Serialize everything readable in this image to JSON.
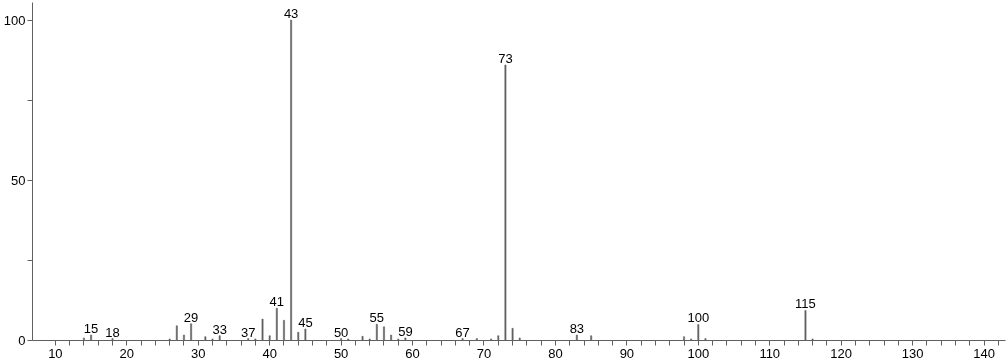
{
  "chart_data": {
    "type": "bar",
    "color": "#606060",
    "x": [
      14,
      15,
      18,
      26,
      27,
      28,
      29,
      31,
      32,
      33,
      37,
      38,
      39,
      40,
      41,
      42,
      43,
      44,
      45,
      50,
      51,
      53,
      54,
      55,
      56,
      57,
      58,
      59,
      67,
      69,
      71,
      72,
      73,
      74,
      75,
      83,
      85,
      98,
      99,
      100,
      101,
      115,
      116
    ],
    "values": [
      0.8,
      1.7,
      0.6,
      0.5,
      4.6,
      1.7,
      5.2,
      1.2,
      0.5,
      1.5,
      0.6,
      0.5,
      6.7,
      1.5,
      10.1,
      6.3,
      100,
      2.6,
      3.6,
      0.6,
      0.5,
      1.3,
      0.5,
      5.1,
      4.3,
      1.7,
      0.5,
      0.8,
      0.6,
      0.6,
      0.5,
      1.5,
      86,
      3.8,
      0.8,
      1.7,
      1.5,
      1.2,
      0.5,
      5.0,
      0.6,
      9.4,
      0.5
    ],
    "xlim": [
      6.8,
      143
    ],
    "ylim": [
      0,
      105.5
    ],
    "xticks": [
      10,
      {
        "value": 12,
        "label": null
      },
      {
        "value": 14,
        "label": null
      },
      {
        "value": 16,
        "label": null
      },
      {
        "value": 18,
        "label": null
      },
      20,
      {
        "value": 22,
        "label": null
      },
      {
        "value": 24,
        "label": null
      },
      {
        "value": 26,
        "label": null
      },
      {
        "value": 28,
        "label": null
      },
      30,
      {
        "value": 32,
        "label": null
      },
      {
        "value": 34,
        "label": null
      },
      {
        "value": 36,
        "label": null
      },
      {
        "value": 38,
        "label": null
      },
      40,
      {
        "value": 42,
        "label": null
      },
      {
        "value": 44,
        "label": null
      },
      {
        "value": 46,
        "label": null
      },
      {
        "value": 48,
        "label": null
      },
      50,
      {
        "value": 52,
        "label": null
      },
      {
        "value": 54,
        "label": null
      },
      {
        "value": 56,
        "label": null
      },
      {
        "value": 58,
        "label": null
      },
      60,
      {
        "value": 62,
        "label": null
      },
      {
        "value": 64,
        "label": null
      },
      {
        "value": 66,
        "label": null
      },
      {
        "value": 68,
        "label": null
      },
      70,
      {
        "value": 72,
        "label": null
      },
      {
        "value": 74,
        "label": null
      },
      {
        "value": 76,
        "label": null
      },
      {
        "value": 78,
        "label": null
      },
      80,
      {
        "value": 82,
        "label": null
      },
      {
        "value": 84,
        "label": null
      },
      {
        "value": 86,
        "label": null
      },
      {
        "value": 88,
        "label": null
      },
      90,
      {
        "value": 92,
        "label": null
      },
      {
        "value": 94,
        "label": null
      },
      {
        "value": 96,
        "label": null
      },
      {
        "value": 98,
        "label": null
      },
      100,
      {
        "value": 102,
        "label": null
      },
      {
        "value": 104,
        "label": null
      },
      {
        "value": 106,
        "label": null
      },
      {
        "value": 108,
        "label": null
      },
      110,
      {
        "value": 112,
        "label": null
      },
      {
        "value": 114,
        "label": null
      },
      {
        "value": 116,
        "label": null
      },
      {
        "value": 118,
        "label": null
      },
      120,
      {
        "value": 122,
        "label": null
      },
      {
        "value": 124,
        "label": null
      },
      {
        "value": 126,
        "label": null
      },
      {
        "value": 128,
        "label": null
      },
      130,
      {
        "value": 132,
        "label": null
      },
      {
        "value": 134,
        "label": null
      },
      {
        "value": 136,
        "label": null
      },
      {
        "value": 138,
        "label": null
      },
      140,
      {
        "value": 142,
        "label": null
      }
    ],
    "yticks": [
      0,
      {
        "value": 25,
        "label": null
      },
      50,
      {
        "value": 75,
        "label": null
      },
      100
    ],
    "grid": false,
    "annotations": [
      {
        "text": "15",
        "x": 15,
        "y": 1.7
      },
      {
        "text": "18",
        "x": 18,
        "y": 0.6
      },
      {
        "text": "29",
        "x": 29,
        "y": 5.2
      },
      {
        "text": "33",
        "x": 33,
        "y": 1.5
      },
      {
        "text": "37",
        "x": 37,
        "y": 0.6
      },
      {
        "text": "41",
        "x": 41,
        "y": 10.1
      },
      {
        "text": "43",
        "x": 43,
        "y": 100
      },
      {
        "text": "45",
        "x": 45,
        "y": 3.6
      },
      {
        "text": "50",
        "x": 50,
        "y": 0.6
      },
      {
        "text": "55",
        "x": 55,
        "y": 5.1
      },
      {
        "text": "59",
        "x": 59,
        "y": 0.8
      },
      {
        "text": "67",
        "x": 67,
        "y": 0.6
      },
      {
        "text": "73",
        "x": 73,
        "y": 86
      },
      {
        "text": "83",
        "x": 83,
        "y": 1.7
      },
      {
        "text": "100",
        "x": 100,
        "y": 5.0
      },
      {
        "text": "115",
        "x": 115,
        "y": 9.4
      }
    ]
  }
}
